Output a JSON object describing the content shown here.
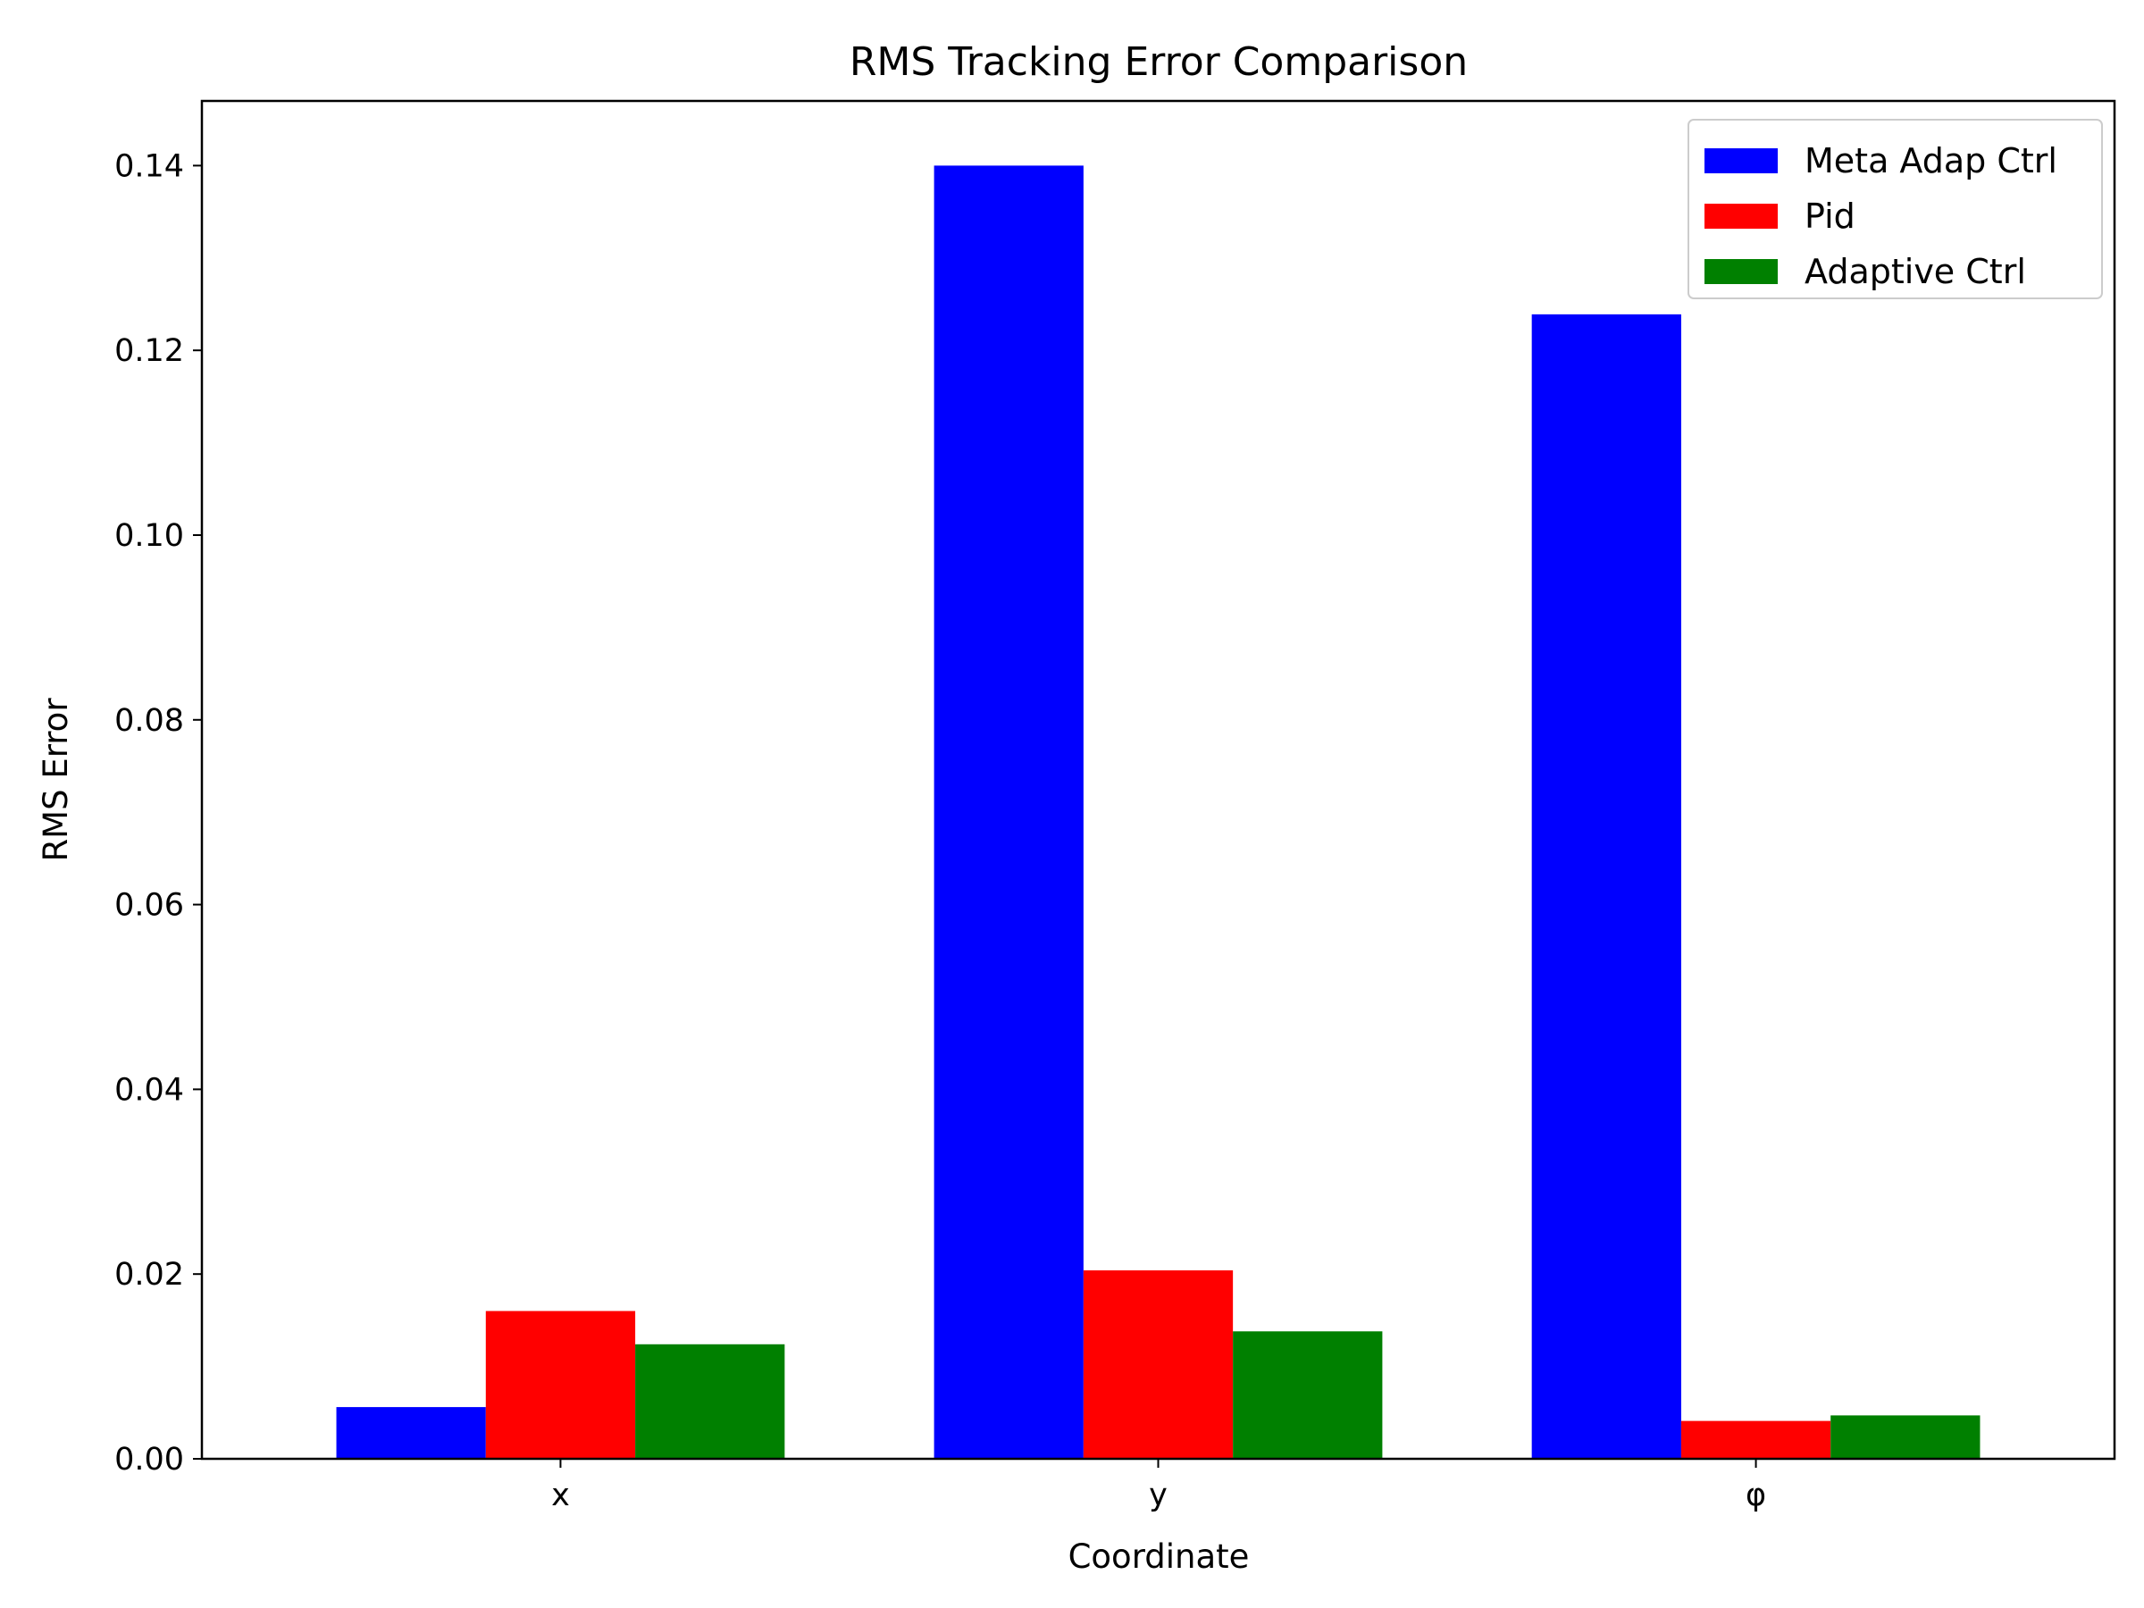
{
  "chart_data": {
    "type": "bar",
    "title": "RMS Tracking Error Comparison",
    "xlabel": "Coordinate",
    "ylabel": "RMS Error",
    "categories": [
      "x",
      "y",
      "φ"
    ],
    "series": [
      {
        "name": "Meta Adap Ctrl",
        "color": "#0000ff",
        "values": [
          0.0056,
          0.14,
          0.1239
        ]
      },
      {
        "name": "Pid",
        "color": "#ff0000",
        "values": [
          0.016,
          0.0204,
          0.0041
        ]
      },
      {
        "name": "Adaptive Ctrl",
        "color": "#008000",
        "values": [
          0.0124,
          0.0138,
          0.0047
        ]
      }
    ],
    "ylim": [
      0,
      0.147
    ],
    "yticks": [
      0.0,
      0.02,
      0.04,
      0.06,
      0.08,
      0.1,
      0.12,
      0.14
    ],
    "ytick_labels": [
      "0.00",
      "0.02",
      "0.04",
      "0.06",
      "0.08",
      "0.10",
      "0.12",
      "0.14"
    ],
    "legend_position": "top-right",
    "grid": false
  }
}
